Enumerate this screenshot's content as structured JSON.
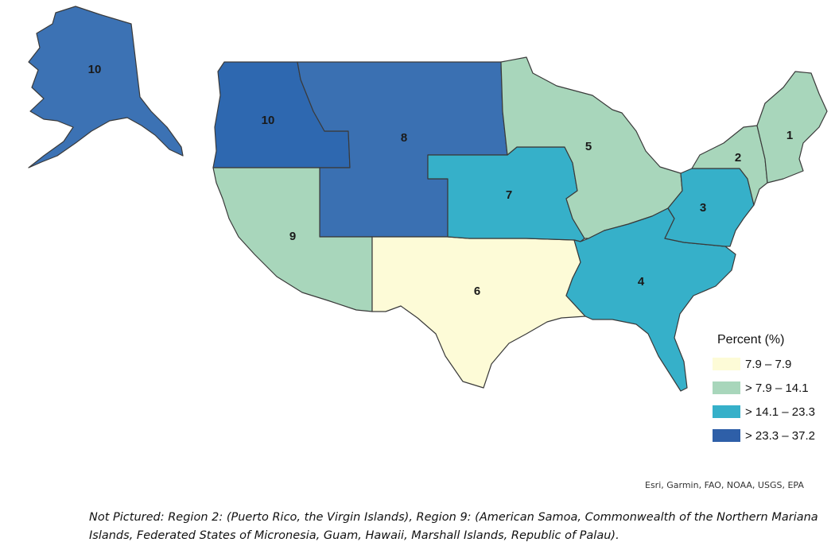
{
  "map": {
    "regions": [
      {
        "id": "ak",
        "label": "10",
        "color": "#3c72b4"
      },
      {
        "id": "r10",
        "label": "10",
        "color": "#2e68b0"
      },
      {
        "id": "r8",
        "label": "8",
        "color": "#3a70b2"
      },
      {
        "id": "r9",
        "label": "9",
        "color": "#a8d6bb"
      },
      {
        "id": "r6",
        "label": "6",
        "color": "#fdfbd7"
      },
      {
        "id": "r7",
        "label": "7",
        "color": "#36b0c9"
      },
      {
        "id": "r5",
        "label": "5",
        "color": "#a8d6bb"
      },
      {
        "id": "r4",
        "label": "4",
        "color": "#36b0c9"
      },
      {
        "id": "r3",
        "label": "3",
        "color": "#36b0c9"
      },
      {
        "id": "r2",
        "label": "2",
        "color": "#a8d6bb"
      },
      {
        "id": "r1",
        "label": "1",
        "color": "#a8d6bb"
      }
    ]
  },
  "legend": {
    "title": "Percent (%)",
    "items": [
      {
        "label": "7.9 – 7.9",
        "color": "#fdfbd7"
      },
      {
        "label": "> 7.9 – 14.1",
        "color": "#a8d6bb"
      },
      {
        "label": "> 14.1 – 23.3",
        "color": "#36b0c9"
      },
      {
        "label": "> 23.3 – 37.2",
        "color": "#2e5fa8"
      }
    ]
  },
  "attribution": "Esri, Garmin, FAO, NOAA, USGS, EPA",
  "note": "Not Pictured: Region 2: (Puerto Rico, the Virgin Islands), Region 9: (American Samoa, Commonwealth of the Northern Mariana Islands, Federated States of Micronesia, Guam, Hawaii, Marshall Islands, Republic of Palau)."
}
